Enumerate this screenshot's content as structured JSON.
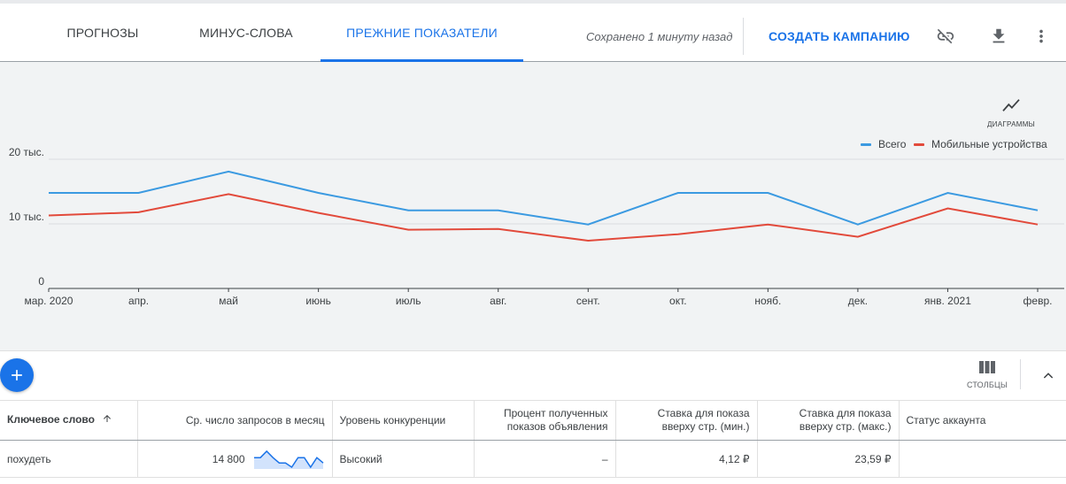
{
  "tabs": [
    {
      "label": "ПРОГНОЗЫ"
    },
    {
      "label": "МИНУС-СЛОВА"
    },
    {
      "label": "ПРЕЖНИЕ ПОКАЗАТЕЛИ"
    }
  ],
  "header": {
    "saved_status": "Сохранено 1 минуту назад",
    "create_campaign_label": "СОЗДАТЬ КАМПАНИЮ",
    "icons": [
      "unlink-icon",
      "download-icon",
      "more-vert-icon"
    ]
  },
  "chart_toggle_label": "ДИАГРАММЫ",
  "colors": {
    "accent": "#1a73e8",
    "total": "#3b9ae1",
    "mobile": "#e24a3b"
  },
  "chart_data": {
    "type": "line",
    "categories": [
      "мар. 2020",
      "апр.",
      "май",
      "июнь",
      "июль",
      "авг.",
      "сент.",
      "окт.",
      "нояб.",
      "дек.",
      "янв. 2021",
      "февр."
    ],
    "series": [
      {
        "name": "Всего",
        "values": [
          14800,
          14800,
          18100,
          14800,
          12100,
          12100,
          9900,
          14800,
          14800,
          9900,
          14800,
          12100
        ]
      },
      {
        "name": "Мобильные устройства",
        "values": [
          11300,
          11800,
          14600,
          11700,
          9100,
          9200,
          7400,
          8400,
          9900,
          8000,
          12400,
          9900
        ]
      }
    ],
    "y_ticks": [
      {
        "value": 0,
        "label": "0"
      },
      {
        "value": 10000,
        "label": "10 тыс."
      },
      {
        "value": 20000,
        "label": "20 тыс."
      }
    ],
    "ylim": [
      0,
      20000
    ],
    "grid": true,
    "legend_position": "top-right"
  },
  "toolbar": {
    "columns_label": "СТОЛБЦЫ"
  },
  "table": {
    "headers": {
      "keyword": "Ключевое слово",
      "volume": "Ср. число запросов в месяц",
      "competition": "Уровень конкуренции",
      "impr_share": "Процент полученных показов объявления",
      "bid_low": "Ставка для показа вверху стр. (мин.)",
      "bid_high": "Ставка для показа вверху стр. (макс.)",
      "status": "Статус аккаунта"
    },
    "rows": [
      {
        "keyword": "похудеть",
        "volume": "14 800",
        "trend": [
          14800,
          14800,
          18100,
          14800,
          12100,
          12100,
          9900,
          14800,
          14800,
          9900,
          14800,
          12100
        ],
        "competition": "Высокий",
        "impr_share": "–",
        "bid_low": "4,12 ₽",
        "bid_high": "23,59 ₽",
        "status": ""
      }
    ]
  }
}
